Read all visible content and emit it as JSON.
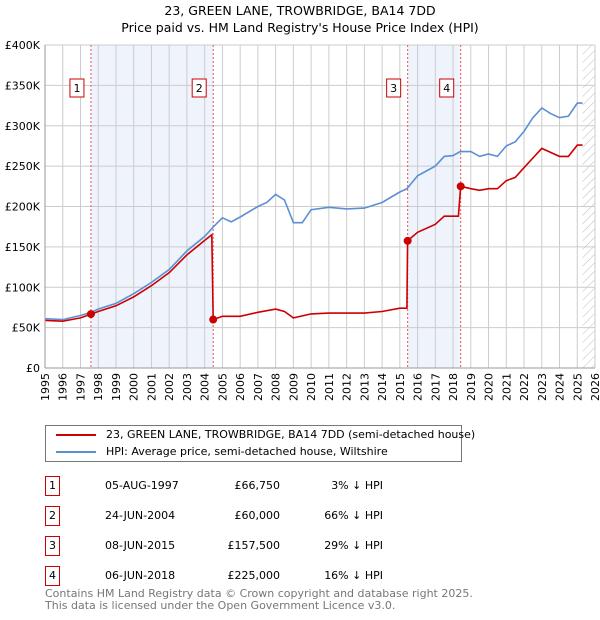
{
  "title": "23, GREEN LANE, TROWBRIDGE, BA14 7DD",
  "subtitle": "Price paid vs. HM Land Registry's House Price Index (HPI)",
  "legend": {
    "red": "23, GREEN LANE, TROWBRIDGE, BA14 7DD (semi-detached house)",
    "blue": "HPI: Average price, semi-detached house, Wiltshire"
  },
  "sales": [
    {
      "num": "1",
      "date": "05-AUG-1997",
      "price": "£66,750",
      "hpi": "3% ↓ HPI",
      "year": 1997.59,
      "value": 66750
    },
    {
      "num": "2",
      "date": "24-JUN-2004",
      "price": "£60,000",
      "hpi": "66% ↓ HPI",
      "year": 2004.48,
      "value": 60000
    },
    {
      "num": "3",
      "date": "08-JUN-2015",
      "price": "£157,500",
      "hpi": "29% ↓ HPI",
      "year": 2015.44,
      "value": 157500
    },
    {
      "num": "4",
      "date": "06-JUN-2018",
      "price": "£225,000",
      "hpi": "16% ↓ HPI",
      "year": 2018.43,
      "value": 225000
    }
  ],
  "footer": [
    "Contains HM Land Registry data © Crown copyright and database right 2025.",
    "This data is licensed under the Open Government Licence v3.0."
  ],
  "chart_data": {
    "type": "line",
    "title": "23, GREEN LANE, TROWBRIDGE, BA14 7DD",
    "xlim": [
      1995,
      2026
    ],
    "ylim": [
      0,
      400000
    ],
    "x_ticks": [
      "1995",
      "1996",
      "1997",
      "1998",
      "1999",
      "2000",
      "2001",
      "2002",
      "2003",
      "2004",
      "2005",
      "2006",
      "2007",
      "2008",
      "2009",
      "2010",
      "2011",
      "2012",
      "2013",
      "2014",
      "2015",
      "2016",
      "2017",
      "2018",
      "2019",
      "2020",
      "2021",
      "2022",
      "2023",
      "2024",
      "2025",
      "2026"
    ],
    "y_ticks": [
      {
        "v": 0,
        "label": "£0"
      },
      {
        "v": 50000,
        "label": "£50K"
      },
      {
        "v": 100000,
        "label": "£100K"
      },
      {
        "v": 150000,
        "label": "£150K"
      },
      {
        "v": 200000,
        "label": "£200K"
      },
      {
        "v": 250000,
        "label": "£250K"
      },
      {
        "v": 300000,
        "label": "£300K"
      },
      {
        "v": 350000,
        "label": "£350K"
      },
      {
        "v": 400000,
        "label": "£400K"
      }
    ],
    "forecast_from": 2025.3,
    "colors": {
      "red": "#cc0000",
      "blue": "#5b8fd4",
      "shade": "#eef3fc"
    },
    "series": [
      {
        "name": "HPI: Average price, semi-detached house, Wiltshire",
        "color": "#5b8fd4",
        "x": [
          1995,
          1996,
          1997,
          1997.6,
          1998,
          1999,
          2000,
          2001,
          2002,
          2003,
          2004,
          2004.5,
          2005,
          2005.5,
          2006,
          2007,
          2007.5,
          2008,
          2008.5,
          2009,
          2009.5,
          2010,
          2011,
          2012,
          2013,
          2014,
          2015,
          2015.4,
          2016,
          2017,
          2017.5,
          2018,
          2018.4,
          2019,
          2019.5,
          2020,
          2020.5,
          2021,
          2021.5,
          2022,
          2022.5,
          2023,
          2023.5,
          2024,
          2024.5,
          2025,
          2025.3
        ],
        "y": [
          61000,
          60000,
          65000,
          69000,
          73000,
          80000,
          92000,
          106000,
          122000,
          145000,
          163000,
          175000,
          186000,
          181000,
          187000,
          200000,
          205000,
          215000,
          208000,
          180000,
          180000,
          196000,
          199000,
          197000,
          198000,
          205000,
          218000,
          222000,
          238000,
          250000,
          262000,
          263000,
          268000,
          268000,
          262000,
          265000,
          262000,
          275000,
          280000,
          293000,
          310000,
          322000,
          315000,
          310000,
          312000,
          328000,
          328000
        ]
      },
      {
        "name": "23, GREEN LANE, TROWBRIDGE, BA14 7DD (semi-detached house)",
        "color": "#cc0000",
        "x": [
          1995,
          1996,
          1997,
          1997.6,
          1998,
          1999,
          2000,
          2001,
          2002,
          2003,
          2004,
          2004.4,
          2004.48,
          2005,
          2006,
          2007,
          2008,
          2008.5,
          2009,
          2010,
          2011,
          2012,
          2013,
          2014,
          2015,
          2015.4,
          2015.44,
          2016,
          2017,
          2017.5,
          2018.3,
          2018.43,
          2019,
          2019.5,
          2020,
          2020.5,
          2021,
          2021.5,
          2022,
          2022.5,
          2023,
          2023.5,
          2024,
          2024.5,
          2025,
          2025.3
        ],
        "y": [
          59000,
          58000,
          62000,
          66750,
          70000,
          77000,
          88000,
          102000,
          118000,
          140000,
          158000,
          165000,
          60000,
          64000,
          64000,
          69000,
          73000,
          70000,
          62000,
          67000,
          68000,
          68000,
          68000,
          70000,
          74000,
          74000,
          157500,
          168000,
          178000,
          188000,
          188000,
          225000,
          222000,
          220000,
          222000,
          222000,
          232000,
          236000,
          248000,
          260000,
          272000,
          267000,
          262000,
          262000,
          276000,
          276000
        ]
      }
    ]
  }
}
